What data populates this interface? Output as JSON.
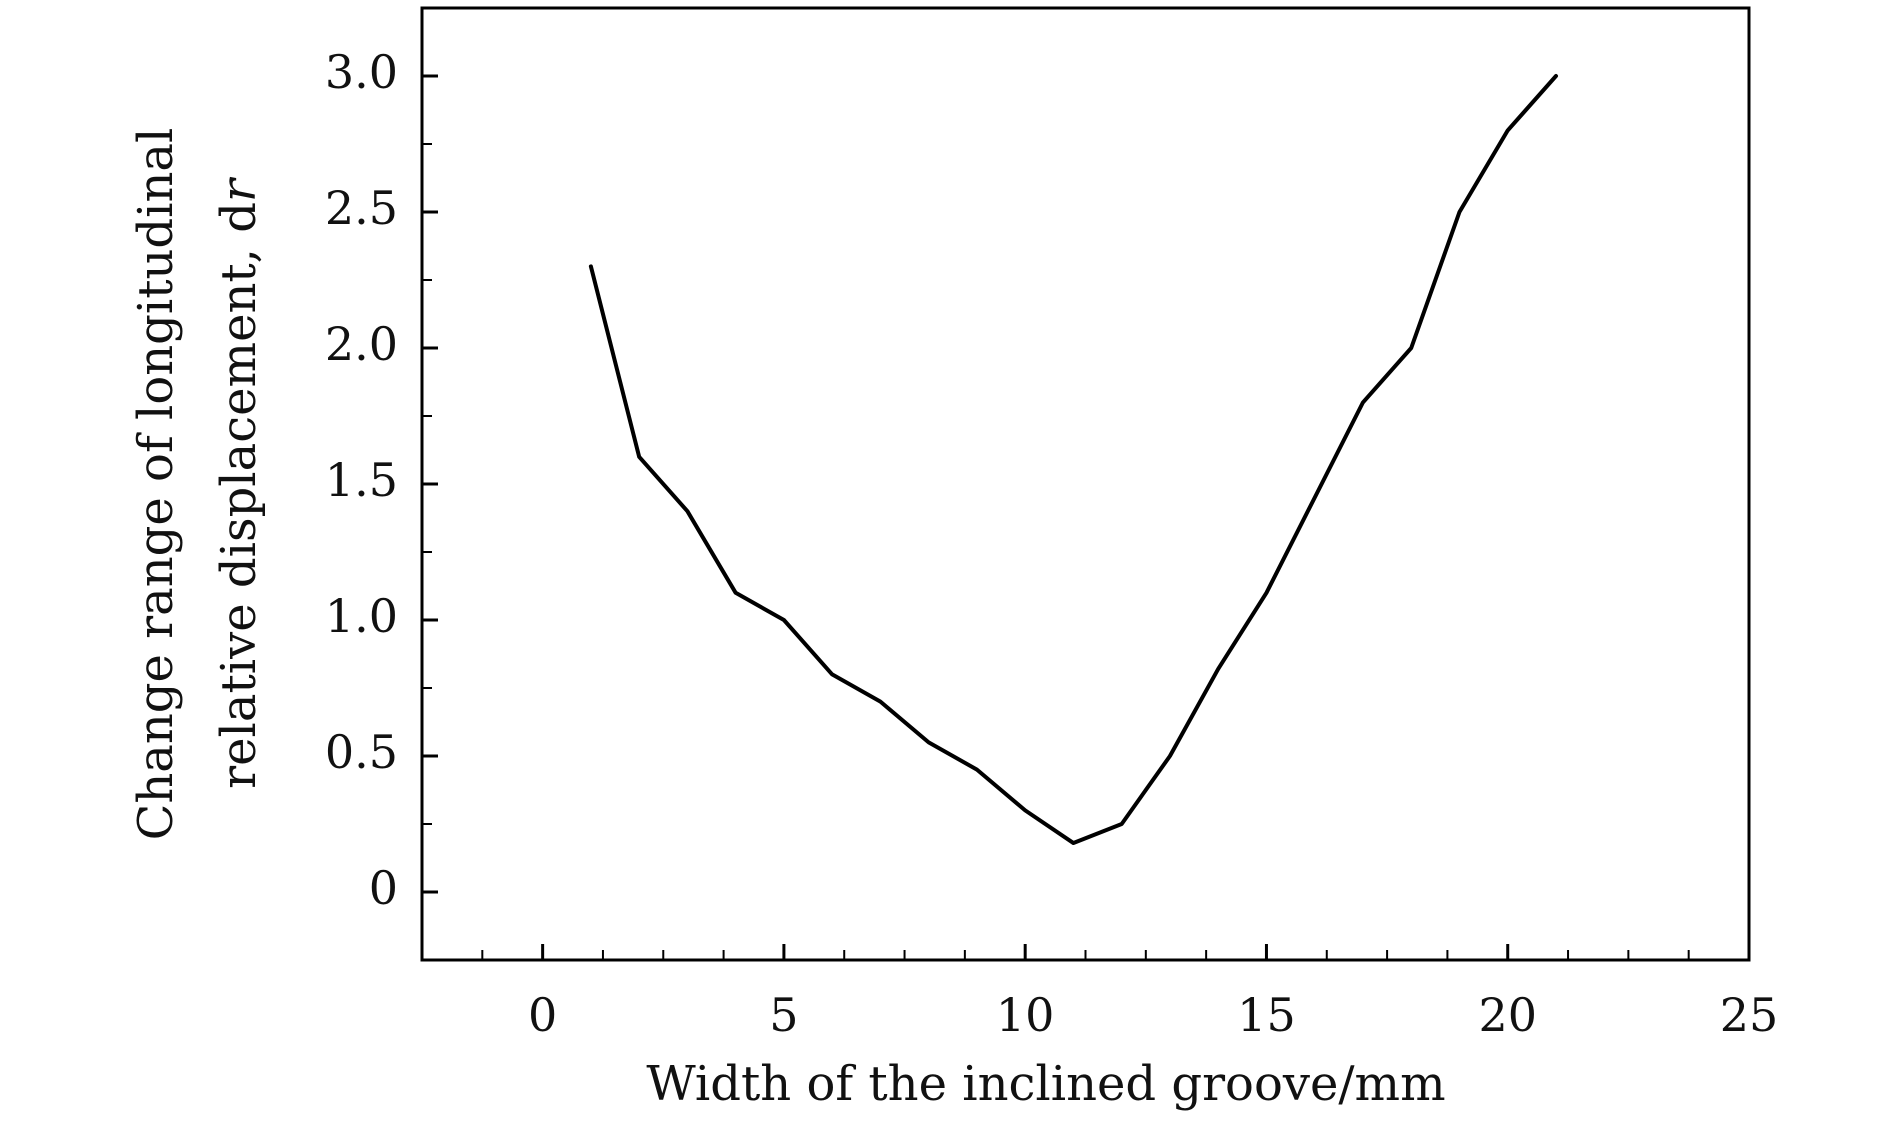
{
  "chart_data": {
    "type": "line",
    "xlabel": "Width of the inclined groove/mm",
    "ylabel_line1": "Change range of longitudinal",
    "ylabel_line2_prefix": "relative displacement, d",
    "ylabel_line2_symbol": "r",
    "xlim": [
      -2.5,
      25
    ],
    "ylim": [
      -0.25,
      3.25
    ],
    "xticks": [
      0,
      5,
      10,
      15,
      20,
      25
    ],
    "xtick_labels": [
      "0",
      "5",
      "10",
      "15",
      "20",
      "25"
    ],
    "xminor_step": 1.25,
    "yticks": [
      0,
      0.5,
      1.0,
      1.5,
      2.0,
      2.5,
      3.0
    ],
    "ytick_labels": [
      "0",
      "0.5",
      "1.0",
      "1.5",
      "2.0",
      "2.5",
      "3.0"
    ],
    "yminor_step": 0.25,
    "grid": false,
    "series": [
      {
        "color": "#000000",
        "x": [
          1,
          2,
          3,
          4,
          5,
          6,
          7,
          8,
          9,
          10,
          11,
          12,
          13,
          14,
          15,
          16,
          17,
          18,
          19,
          20,
          21
        ],
        "y": [
          2.3,
          1.6,
          1.4,
          1.1,
          1.0,
          0.8,
          0.7,
          0.55,
          0.45,
          0.3,
          0.18,
          0.25,
          0.5,
          0.82,
          1.1,
          1.45,
          1.8,
          2.0,
          2.5,
          2.8,
          3.0
        ]
      }
    ]
  }
}
